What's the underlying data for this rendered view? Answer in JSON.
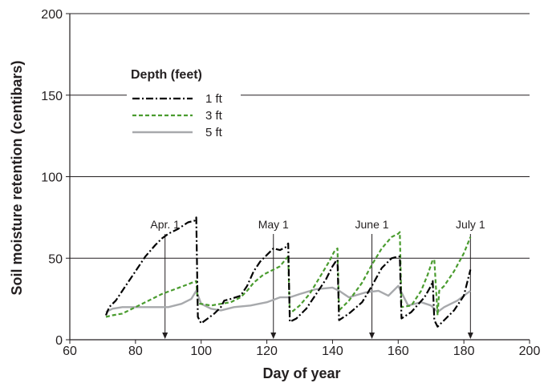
{
  "chart_data": {
    "type": "line",
    "xlabel": "Day of year",
    "ylabel": "Soil moisture retention (centibars)",
    "xlim": [
      60,
      200
    ],
    "ylim": [
      0,
      200
    ],
    "xticks": [
      60,
      80,
      100,
      120,
      140,
      160,
      180,
      200
    ],
    "yticks": [
      0,
      50,
      100,
      150,
      200
    ],
    "grid": "horizontal",
    "legend": {
      "title": "Depth (feet)",
      "placement": "upper-left"
    },
    "series": [
      {
        "name": "1 ft",
        "color": "#000000",
        "style": "dash-dot",
        "x": [
          71,
          72,
          74,
          77,
          80,
          83,
          86,
          88,
          90,
          93,
          96,
          98,
          98.5,
          99,
          100,
          102,
          104,
          106,
          107,
          109,
          112,
          114,
          116,
          118,
          120,
          122,
          124,
          126,
          126.5,
          127,
          129,
          132,
          135,
          138,
          140,
          141,
          141.5,
          142,
          145,
          149,
          152,
          155,
          158,
          160,
          160.5,
          161,
          164,
          168,
          170,
          170.5,
          171,
          172,
          174,
          177,
          180,
          182
        ],
        "y": [
          15,
          20,
          24,
          33,
          42,
          51,
          58,
          62,
          65,
          68,
          72,
          73,
          75,
          14,
          10,
          13,
          16,
          20,
          24,
          25,
          27,
          33,
          42,
          48,
          52,
          56,
          55,
          57,
          59,
          11,
          13,
          19,
          28,
          37,
          45,
          48,
          49,
          12,
          16,
          23,
          33,
          44,
          50,
          51,
          51,
          13,
          17,
          26,
          33,
          36,
          12,
          8,
          12,
          18,
          27,
          43
        ]
      },
      {
        "name": "3 ft",
        "color": "#4a9c2f",
        "style": "dashed",
        "x": [
          71,
          73,
          76,
          80,
          84,
          88,
          92,
          96,
          98.5,
          99,
          100,
          103,
          106,
          109,
          112,
          114,
          116,
          119,
          122,
          124,
          126,
          126.5,
          127,
          130,
          133,
          136,
          139,
          140.5,
          141,
          141.5,
          142,
          145,
          149,
          152,
          155,
          158,
          160,
          160.5,
          161,
          164,
          167,
          169,
          170.5,
          171,
          172,
          172.5,
          174,
          177,
          180,
          182
        ],
        "y": [
          14,
          15,
          16,
          20,
          24,
          28,
          31,
          34,
          36,
          22,
          22,
          21,
          22,
          23,
          26,
          30,
          35,
          40,
          43,
          45,
          50,
          51,
          16,
          21,
          28,
          38,
          48,
          54,
          55,
          56,
          18,
          24,
          35,
          46,
          56,
          63,
          65,
          66,
          20,
          21,
          30,
          40,
          49,
          49,
          15,
          30,
          33,
          42,
          53,
          63
        ]
      },
      {
        "name": "5 ft",
        "color": "#a7a9ac",
        "style": "solid",
        "x": [
          71,
          73,
          76,
          80,
          85,
          90,
          94,
          97,
          98.5,
          100,
          103,
          106,
          110,
          115,
          120,
          124,
          127,
          130,
          135,
          140,
          142,
          145,
          150,
          154,
          157,
          160,
          163,
          167,
          170,
          172,
          174,
          178,
          182
        ],
        "y": [
          17,
          19,
          20,
          20,
          20,
          20,
          22,
          25,
          30,
          22,
          19,
          18,
          20,
          21,
          23,
          26,
          26,
          28,
          31,
          32,
          30,
          26,
          29,
          30,
          27,
          33,
          21,
          23,
          21,
          17,
          20,
          24,
          30
        ]
      }
    ],
    "annotations": [
      {
        "label": "Apr. 1",
        "x": 89
      },
      {
        "label": "May 1",
        "x": 122
      },
      {
        "label": "June 1",
        "x": 152
      },
      {
        "label": "July 1",
        "x": 182
      }
    ]
  }
}
